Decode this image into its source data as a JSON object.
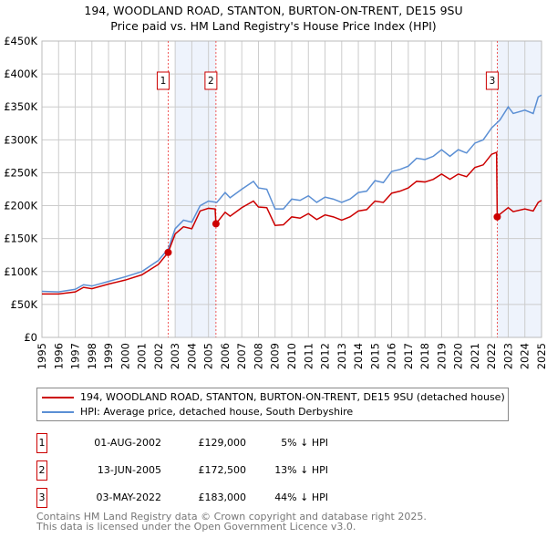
{
  "chart_data": {
    "type": "line",
    "title": "194, WOODLAND ROAD, STANTON, BURTON-ON-TRENT, DE15 9SU",
    "subtitle": "Price paid vs. HM Land Registry's House Price Index (HPI)",
    "xlim": [
      1995,
      2025
    ],
    "ylim": [
      0,
      450000
    ],
    "grid": true,
    "y_ticks": [
      {
        "v": 0,
        "l": "£0"
      },
      {
        "v": 50000,
        "l": "£50K"
      },
      {
        "v": 100000,
        "l": "£100K"
      },
      {
        "v": 150000,
        "l": "£150K"
      },
      {
        "v": 200000,
        "l": "£200K"
      },
      {
        "v": 250000,
        "l": "£250K"
      },
      {
        "v": 300000,
        "l": "£300K"
      },
      {
        "v": 350000,
        "l": "£350K"
      },
      {
        "v": 400000,
        "l": "£400K"
      },
      {
        "v": 450000,
        "l": "£450K"
      }
    ],
    "x_ticks": [
      "1995",
      "1996",
      "1997",
      "1998",
      "1999",
      "2000",
      "2001",
      "2002",
      "2003",
      "2004",
      "2005",
      "2006",
      "2007",
      "2008",
      "2009",
      "2010",
      "2011",
      "2012",
      "2013",
      "2014",
      "2015",
      "2016",
      "2017",
      "2018",
      "2019",
      "2020",
      "2021",
      "2022",
      "2023",
      "2024",
      "2025"
    ],
    "shaded": [
      [
        2003.0,
        2005.45
      ],
      [
        2022.34,
        2025
      ]
    ],
    "series": [
      {
        "name": "194, WOODLAND ROAD, STANTON, BURTON-ON-TRENT, DE15 9SU (detached house)",
        "color": "#cc0000",
        "x": [
          1995,
          1996,
          1997,
          1997.5,
          1998,
          1999,
          2000,
          2001,
          2002,
          2002.58,
          2003,
          2003.5,
          2004,
          2004.5,
          2005,
          2005.4,
          2005.45,
          2006,
          2006.3,
          2007,
          2007.7,
          2008,
          2008.5,
          2009,
          2009.5,
          2010,
          2010.5,
          2011,
          2011.5,
          2012,
          2012.5,
          2013,
          2013.5,
          2014,
          2014.5,
          2015,
          2015.5,
          2016,
          2016.5,
          2017,
          2017.5,
          2018,
          2018.5,
          2019,
          2019.5,
          2020,
          2020.5,
          2021,
          2021.5,
          2022,
          2022.3,
          2022.34,
          2022.5,
          2023,
          2023.3,
          2024,
          2024.5,
          2024.8,
          2025
        ],
        "y": [
          66,
          66,
          69,
          76,
          74,
          81,
          87,
          95,
          111,
          129,
          157,
          168,
          165,
          192,
          196,
          195,
          172.5,
          190,
          184,
          197,
          207,
          198,
          197,
          170,
          171,
          183,
          181,
          188,
          179,
          186,
          183,
          178,
          183,
          192,
          194,
          207,
          205,
          219,
          222,
          227,
          237,
          236,
          240,
          248,
          240,
          248,
          244,
          258,
          262,
          278,
          281,
          183,
          187,
          197,
          191,
          195,
          192,
          205,
          208
        ]
      },
      {
        "name": "HPI: Average price, detached house, South Derbyshire",
        "color": "#5b8fd4",
        "x": [
          1995,
          1996,
          1997,
          1997.5,
          1998,
          1999,
          2000,
          2001,
          2002,
          2002.6,
          2003,
          2003.5,
          2004,
          2004.5,
          2005,
          2005.5,
          2006,
          2006.3,
          2007,
          2007.7,
          2008,
          2008.5,
          2009,
          2009.5,
          2010,
          2010.5,
          2011,
          2011.5,
          2012,
          2012.5,
          2013,
          2013.5,
          2014,
          2014.5,
          2015,
          2015.5,
          2016,
          2016.5,
          2017,
          2017.5,
          2018,
          2018.5,
          2019,
          2019.5,
          2020,
          2020.5,
          2021,
          2021.5,
          2022,
          2022.5,
          2023,
          2023.3,
          2024,
          2024.5,
          2024.8,
          2025
        ],
        "y": [
          70,
          69,
          73,
          80,
          78,
          85,
          92,
          100,
          117,
          135,
          165,
          178,
          175,
          200,
          207,
          205,
          220,
          212,
          225,
          237,
          227,
          225,
          195,
          195,
          210,
          208,
          215,
          205,
          213,
          210,
          205,
          210,
          220,
          222,
          238,
          235,
          252,
          255,
          260,
          272,
          270,
          275,
          285,
          275,
          285,
          280,
          295,
          300,
          318,
          330,
          350,
          340,
          345,
          340,
          365,
          368
        ]
      }
    ],
    "sales": [
      {
        "label": "1",
        "x": 2002.58,
        "y": 129000
      },
      {
        "label": "2",
        "x": 2005.45,
        "y": 172500
      },
      {
        "label": "3",
        "x": 2022.34,
        "y": 183000
      }
    ],
    "legend_position": "below"
  },
  "table": [
    {
      "n": "1",
      "date": "01-AUG-2002",
      "price": "£129,000",
      "hpi": "5% ↓ HPI"
    },
    {
      "n": "2",
      "date": "13-JUN-2005",
      "price": "£172,500",
      "hpi": "13% ↓ HPI"
    },
    {
      "n": "3",
      "date": "03-MAY-2022",
      "price": "£183,000",
      "hpi": "44% ↓ HPI"
    }
  ],
  "footer": [
    "Contains HM Land Registry data © Crown copyright and database right 2025.",
    "This data is licensed under the Open Government Licence v3.0."
  ]
}
